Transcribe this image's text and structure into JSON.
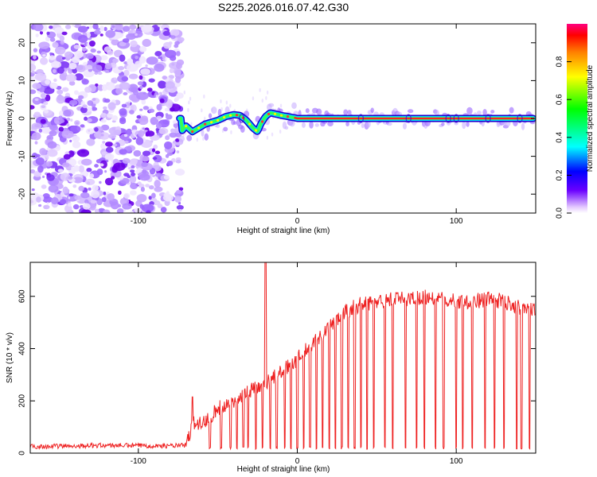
{
  "title": "S225.2026.016.07.42.G30",
  "colors": {
    "snr_line": "#ee2222",
    "noise_purple": "#5a00e0",
    "axis": "#000000"
  },
  "chart_data": [
    {
      "type": "heatmap",
      "name": "spectrogram",
      "xlabel": "Height of straight line (km)",
      "ylabel": "Frequency (Hz)",
      "xlim": [
        -168,
        150
      ],
      "ylim": [
        -25,
        25
      ],
      "xticks": [
        -100,
        0,
        100
      ],
      "yticks": [
        -20,
        -10,
        0,
        10,
        20
      ],
      "noise_region_x": [
        -168,
        -73
      ],
      "ridge": {
        "x": [
          -73,
          -70,
          -66,
          -62,
          -58,
          -54,
          -50,
          -45,
          -40,
          -36,
          -32,
          -28,
          -25,
          -23,
          -20,
          -17,
          -14,
          -10,
          -6,
          -2,
          0,
          20,
          50,
          100,
          150
        ],
        "y": [
          -3.5,
          -2.0,
          -3.5,
          -2.5,
          -1.5,
          -1.0,
          -0.5,
          0.5,
          1.0,
          0.8,
          -0.5,
          -2.5,
          -3.5,
          -1.5,
          0.5,
          1.5,
          1.2,
          0.8,
          0.5,
          0.2,
          0.0,
          0.0,
          0.0,
          0.0,
          0.0
        ]
      },
      "colorbar": {
        "label": "Normalized spectral amplitude",
        "range": [
          0.0,
          1.0
        ],
        "ticks": [
          0.0,
          0.2,
          0.4,
          0.6,
          0.8
        ]
      }
    },
    {
      "type": "line",
      "name": "snr",
      "xlabel": "Height of straight line (km)",
      "ylabel": "SNR (10 * v/v)",
      "xlim": [
        -168,
        150
      ],
      "ylim": [
        0,
        730
      ],
      "xticks": [
        -100,
        0,
        100
      ],
      "yticks": [
        0,
        200,
        400,
        600
      ],
      "envelope": {
        "x": [
          -168,
          -120,
          -80,
          -70,
          -65,
          -60,
          -50,
          -40,
          -30,
          -20,
          -10,
          0,
          10,
          20,
          30,
          40,
          50,
          60,
          70,
          80,
          90,
          100,
          110,
          120,
          130,
          140,
          150
        ],
        "y": [
          25,
          30,
          28,
          30,
          120,
          110,
          170,
          200,
          240,
          270,
          310,
          360,
          420,
          480,
          540,
          570,
          580,
          590,
          590,
          600,
          590,
          580,
          580,
          590,
          580,
          560,
          550
        ]
      },
      "spikes": [
        {
          "x": -20,
          "y": 740
        },
        {
          "x": -66,
          "y": 215
        }
      ],
      "dropouts_x": [
        -55,
        -48,
        -42,
        -38,
        -34,
        -31,
        -26,
        -22,
        -17,
        -13,
        -8,
        -4,
        0,
        4,
        8,
        12,
        16,
        20,
        24,
        28,
        32,
        36,
        40,
        44,
        48,
        55,
        60,
        68,
        75,
        80,
        87,
        92,
        100,
        104,
        110,
        118,
        124,
        130,
        138,
        141,
        146
      ]
    }
  ]
}
